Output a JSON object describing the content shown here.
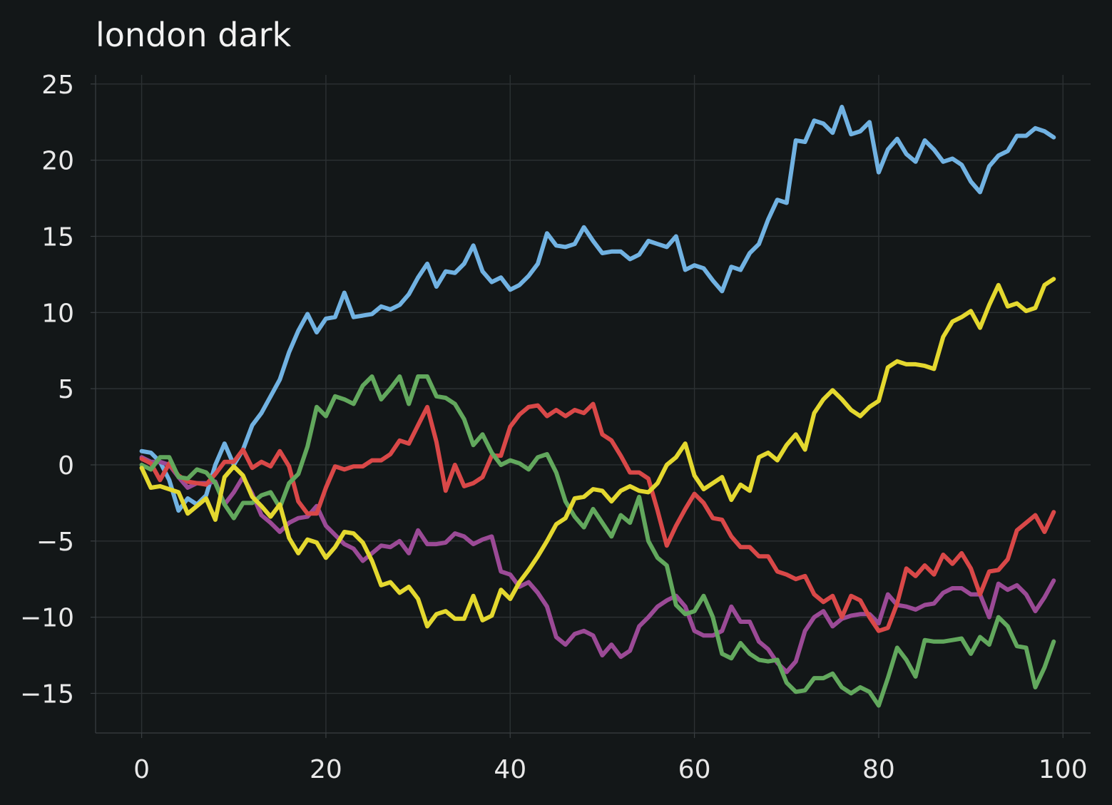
{
  "chart_data": {
    "type": "line",
    "title": "london dark",
    "xlabel": "",
    "ylabel": "",
    "xlim": [
      -5,
      103
    ],
    "ylim": [
      -17.6,
      25.6
    ],
    "xticks": [
      0,
      20,
      40,
      60,
      80,
      100
    ],
    "yticks": [
      25,
      20,
      15,
      10,
      5,
      0,
      -5,
      -10,
      -15
    ],
    "xtick_labels": [
      "0",
      "20",
      "40",
      "60",
      "80",
      "100"
    ],
    "ytick_labels": [
      "25",
      "20",
      "15",
      "10",
      "5",
      "0",
      "−5",
      "−10",
      "−15"
    ],
    "grid": true,
    "legend": "none",
    "colors": {
      "background": "#131718",
      "grid": "#2c3133",
      "axis": "#3a3f42"
    },
    "x": [
      0,
      1,
      2,
      3,
      4,
      5,
      6,
      7,
      8,
      9,
      10,
      11,
      12,
      13,
      14,
      15,
      16,
      17,
      18,
      19,
      20,
      21,
      22,
      23,
      24,
      25,
      26,
      27,
      28,
      29,
      30,
      31,
      32,
      33,
      34,
      35,
      36,
      37,
      38,
      39,
      40,
      41,
      42,
      43,
      44,
      45,
      46,
      47,
      48,
      49,
      50,
      51,
      52,
      53,
      54,
      55,
      56,
      57,
      58,
      59,
      60,
      61,
      62,
      63,
      64,
      65,
      66,
      67,
      68,
      69,
      70,
      71,
      72,
      73,
      74,
      75,
      76,
      77,
      78,
      79,
      80,
      81,
      82,
      83,
      84,
      85,
      86,
      87,
      88,
      89,
      90,
      91,
      92,
      93,
      94,
      95,
      96,
      97,
      98,
      99
    ],
    "series": [
      {
        "color": "#71b2e2",
        "values": [
          0.9,
          0.8,
          0.2,
          -1.0,
          -3.0,
          -2.2,
          -2.6,
          -2.0,
          0.0,
          1.4,
          0.0,
          1.0,
          2.6,
          3.4,
          4.5,
          5.6,
          7.4,
          8.8,
          9.9,
          8.7,
          9.6,
          9.7,
          11.3,
          9.7,
          9.8,
          9.9,
          10.4,
          10.2,
          10.5,
          11.2,
          12.3,
          13.2,
          11.7,
          12.7,
          12.6,
          13.2,
          14.4,
          12.7,
          12.0,
          12.3,
          11.5,
          11.8,
          12.4,
          13.2,
          15.2,
          14.4,
          14.3,
          14.5,
          15.6,
          14.7,
          13.9,
          14.0,
          14.0,
          13.5,
          13.8,
          14.7,
          14.5,
          14.3,
          15.0,
          12.8,
          13.1,
          12.9,
          12.1,
          11.4,
          13.0,
          12.8,
          13.9,
          14.5,
          16.1,
          17.4,
          17.2,
          21.3,
          21.2,
          22.6,
          22.4,
          21.8,
          23.5,
          21.7,
          21.9,
          22.5,
          19.2,
          20.7,
          21.4,
          20.4,
          19.9,
          21.3,
          20.7,
          19.9,
          20.1,
          19.7,
          18.6,
          17.9,
          19.6,
          20.3,
          20.6,
          21.6,
          21.6,
          22.1,
          21.9,
          21.5
        ]
      },
      {
        "color": "#9b4a96",
        "values": [
          0.5,
          0.2,
          0.2,
          0.0,
          -0.8,
          -1.5,
          -1.2,
          -1.2,
          -1.1,
          -2.6,
          -1.8,
          -0.8,
          -1.9,
          -3.3,
          -3.8,
          -4.4,
          -3.8,
          -3.5,
          -3.4,
          -2.7,
          -4.0,
          -4.6,
          -5.2,
          -5.5,
          -6.3,
          -5.8,
          -5.3,
          -5.4,
          -5.0,
          -5.8,
          -4.3,
          -5.2,
          -5.2,
          -5.1,
          -4.5,
          -4.7,
          -5.2,
          -4.9,
          -4.7,
          -7.0,
          -7.2,
          -8.0,
          -7.7,
          -8.4,
          -9.3,
          -11.3,
          -11.8,
          -11.1,
          -10.9,
          -11.2,
          -12.5,
          -11.8,
          -12.6,
          -12.2,
          -10.6,
          -10.0,
          -9.3,
          -8.9,
          -8.6,
          -9.3,
          -10.9,
          -11.2,
          -11.2,
          -10.9,
          -9.3,
          -10.3,
          -10.3,
          -11.6,
          -12.1,
          -13.0,
          -13.6,
          -12.9,
          -10.9,
          -10.0,
          -9.6,
          -10.6,
          -10.1,
          -9.9,
          -9.8,
          -9.8,
          -10.4,
          -8.5,
          -9.2,
          -9.3,
          -9.5,
          -9.2,
          -9.1,
          -8.4,
          -8.1,
          -8.1,
          -8.5,
          -8.5,
          -10.0,
          -7.8,
          -8.2,
          -7.9,
          -8.5,
          -9.6,
          -8.7,
          -7.6
        ]
      },
      {
        "color": "#d94848",
        "values": [
          0.4,
          0.1,
          -1.0,
          0.1,
          -0.7,
          -1.1,
          -1.2,
          -1.3,
          -0.6,
          0.2,
          0.2,
          1.0,
          -0.2,
          0.2,
          -0.1,
          0.9,
          -0.1,
          -2.4,
          -3.2,
          -3.2,
          -1.5,
          -0.1,
          -0.3,
          -0.1,
          -0.1,
          0.3,
          0.3,
          0.7,
          1.6,
          1.4,
          2.6,
          3.8,
          1.5,
          -1.7,
          0.0,
          -1.4,
          -1.2,
          -0.8,
          0.6,
          0.6,
          2.5,
          3.3,
          3.8,
          3.9,
          3.2,
          3.6,
          3.2,
          3.6,
          3.4,
          4.0,
          2.0,
          1.6,
          0.6,
          -0.5,
          -0.5,
          -0.9,
          -3.0,
          -5.3,
          -4.0,
          -2.9,
          -1.9,
          -2.5,
          -3.5,
          -3.6,
          -4.7,
          -5.4,
          -5.4,
          -6.0,
          -6.0,
          -7.0,
          -7.2,
          -7.5,
          -7.3,
          -8.5,
          -9.0,
          -8.6,
          -10.0,
          -8.6,
          -8.9,
          -10.0,
          -10.9,
          -10.7,
          -9.1,
          -6.8,
          -7.3,
          -6.6,
          -7.2,
          -5.9,
          -6.5,
          -5.8,
          -6.8,
          -8.5,
          -7.0,
          -6.9,
          -6.2,
          -4.3,
          -3.8,
          -3.3,
          -4.4,
          -3.1
        ]
      },
      {
        "color": "#62a85d",
        "values": [
          0.0,
          -0.3,
          0.5,
          0.5,
          -0.8,
          -0.9,
          -0.3,
          -0.5,
          -1.2,
          -2.6,
          -3.5,
          -2.5,
          -2.5,
          -2.0,
          -1.8,
          -2.8,
          -1.2,
          -0.6,
          1.2,
          3.8,
          3.2,
          4.5,
          4.3,
          4.0,
          5.2,
          5.8,
          4.3,
          5.0,
          5.8,
          4.0,
          5.8,
          5.8,
          4.5,
          4.4,
          4.0,
          3.0,
          1.3,
          2.0,
          0.8,
          0.0,
          0.3,
          0.1,
          -0.3,
          0.5,
          0.7,
          -0.5,
          -2.4,
          -3.4,
          -4.1,
          -2.9,
          -3.8,
          -4.7,
          -3.3,
          -3.8,
          -2.1,
          -5.0,
          -6.1,
          -6.6,
          -9.2,
          -9.8,
          -9.6,
          -8.6,
          -10.0,
          -12.4,
          -12.7,
          -11.7,
          -12.4,
          -12.8,
          -12.9,
          -12.8,
          -14.3,
          -14.9,
          -14.8,
          -14.0,
          -14.0,
          -13.7,
          -14.6,
          -15.0,
          -14.6,
          -14.9,
          -15.8,
          -14.0,
          -12.0,
          -12.8,
          -13.9,
          -11.5,
          -11.6,
          -11.6,
          -11.5,
          -11.4,
          -12.4,
          -11.3,
          -11.8,
          -10.0,
          -10.6,
          -11.9,
          -12.0,
          -14.6,
          -13.3,
          -11.6
        ]
      },
      {
        "color": "#e4d82f",
        "values": [
          -0.2,
          -1.5,
          -1.4,
          -1.6,
          -1.8,
          -3.2,
          -2.7,
          -2.2,
          -3.6,
          -0.8,
          -0.1,
          -0.7,
          -2.1,
          -2.7,
          -3.4,
          -2.6,
          -4.8,
          -5.8,
          -4.9,
          -5.1,
          -6.1,
          -5.4,
          -4.4,
          -4.5,
          -5.1,
          -6.3,
          -7.9,
          -7.7,
          -8.4,
          -8.0,
          -8.8,
          -10.6,
          -9.8,
          -9.6,
          -10.1,
          -10.1,
          -8.6,
          -10.2,
          -9.9,
          -8.2,
          -8.8,
          -7.7,
          -6.9,
          -6.0,
          -5.0,
          -3.9,
          -3.5,
          -2.2,
          -2.1,
          -1.6,
          -1.7,
          -2.4,
          -1.7,
          -1.4,
          -1.7,
          -1.8,
          -1.2,
          0.0,
          0.5,
          1.4,
          -0.7,
          -1.6,
          -1.2,
          -0.8,
          -2.3,
          -1.3,
          -1.7,
          0.5,
          0.8,
          0.3,
          1.3,
          2.0,
          1.0,
          3.4,
          4.3,
          4.9,
          4.3,
          3.6,
          3.2,
          3.8,
          4.2,
          6.4,
          6.8,
          6.6,
          6.6,
          6.5,
          6.3,
          8.4,
          9.4,
          9.7,
          10.1,
          9.0,
          10.5,
          11.8,
          10.4,
          10.6,
          10.1,
          10.3,
          11.8,
          12.2
        ]
      }
    ]
  }
}
